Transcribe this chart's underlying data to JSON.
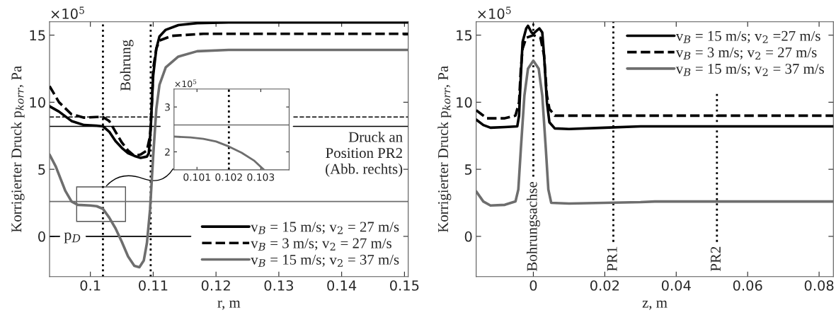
{
  "chart_data": [
    {
      "type": "line",
      "xlabel": "r, m",
      "ylabel": "Korrigierter Druck p$_{korr}$, Pa",
      "xlim": [
        0.0935,
        0.1506
      ],
      "ylim": [
        -3,
        16
      ],
      "xticks": [
        0.1,
        0.11,
        0.12,
        0.13,
        0.14,
        0.15
      ],
      "yticks": [
        0,
        5,
        10,
        15
      ],
      "legend": "bottom right",
      "series": [
        {
          "name": "v$_{B}$ = 15 m/s; v$_{2}$ = 27 m/s",
          "color": "#000000",
          "line_style": "solid",
          "x": [
            0.0935,
            0.095,
            0.097,
            0.099,
            0.101,
            0.102,
            0.103,
            0.104,
            0.105,
            0.106,
            0.107,
            0.108,
            0.109,
            0.1093,
            0.1096,
            0.11,
            0.1105,
            0.111,
            0.112,
            0.114,
            0.117,
            0.122,
            0.1506
          ],
          "values": [
            9.7,
            9.3,
            8.6,
            8.3,
            8.25,
            8.2,
            7.8,
            7.1,
            6.6,
            6.2,
            6.0,
            5.85,
            5.95,
            6.2,
            8,
            12,
            14,
            14.9,
            15.4,
            15.75,
            15.9,
            15.95,
            15.95
          ]
        },
        {
          "name": "v$_{B}$ = 3 m/s; v$_{2}$ = 27 m/s",
          "color": "#000000",
          "line_style": "dashed",
          "x": [
            0.0935,
            0.095,
            0.097,
            0.099,
            0.101,
            0.102,
            0.103,
            0.104,
            0.105,
            0.106,
            0.107,
            0.108,
            0.109,
            0.1095,
            0.1098,
            0.11,
            0.1105,
            0.111,
            0.113,
            0.118,
            0.1506
          ],
          "values": [
            11.2,
            10.0,
            9.1,
            8.85,
            8.9,
            8.9,
            8.6,
            7.8,
            7.0,
            6.4,
            6.0,
            6.1,
            6.4,
            7.5,
            10,
            12.5,
            14,
            14.6,
            14.95,
            15.1,
            15.1
          ]
        },
        {
          "name": "v$_{B}$ = 15 m/s; v$_{2}$ = 37 m/s",
          "color": "#6e6e6e",
          "line_style": "solid",
          "x": [
            0.0935,
            0.0945,
            0.096,
            0.097,
            0.098,
            0.1,
            0.101,
            0.102,
            0.103,
            0.104,
            0.105,
            0.106,
            0.107,
            0.1078,
            0.1085,
            0.109,
            0.1095,
            0.11,
            0.1105,
            0.111,
            0.112,
            0.114,
            0.117,
            0.122,
            0.1506
          ],
          "values": [
            6.1,
            5.2,
            3.4,
            2.6,
            2.35,
            2.3,
            2.25,
            2.05,
            1.4,
            0.6,
            -0.4,
            -1.5,
            -2.2,
            -2.3,
            -1.8,
            -0.5,
            2,
            6,
            9.5,
            11.3,
            12.6,
            13.4,
            13.8,
            13.9,
            13.9
          ]
        }
      ],
      "ref_lines": [
        {
          "axis": "y",
          "value": 8.2,
          "color": "#000000",
          "line_style": "solid"
        },
        {
          "axis": "y",
          "value": 8.9,
          "color": "#000000",
          "line_style": "dashed"
        },
        {
          "axis": "y",
          "value": 2.6,
          "color": "#6e6e6e",
          "line_style": "solid"
        },
        {
          "axis": "y",
          "value": 0,
          "label": "p$_{D}$",
          "color": "#000000",
          "line_style": "solid"
        },
        {
          "axis": "x",
          "value": 0.102,
          "color": "#000000",
          "line_style": "dotted"
        },
        {
          "axis": "x",
          "value": 0.1096,
          "color": "#000000",
          "line_style": "dotted"
        }
      ],
      "annotations": [
        "×10$^{5}$",
        "Bohrung",
        "Druck an\nPosition PR2\n(Abb. rechts)"
      ]
    },
    {
      "type": "line",
      "xlim": [
        0.10028,
        0.10389
      ],
      "ylim": [
        1.6,
        3.4
      ],
      "xticks": [
        0.101,
        0.102,
        0.103
      ],
      "yticks": [
        2,
        3
      ],
      "series": [
        {
          "color": "#6e6e6e",
          "line_style": "solid",
          "x": [
            0.10028,
            0.1008,
            0.1012,
            0.1016,
            0.102,
            0.1024,
            0.1028,
            0.1031
          ],
          "values": [
            2.34,
            2.32,
            2.29,
            2.23,
            2.12,
            1.98,
            1.8,
            1.6
          ]
        }
      ],
      "ref_lines": [
        {
          "axis": "y",
          "value": 2.6,
          "color": "#6e6e6e",
          "line_style": "solid"
        },
        {
          "axis": "x",
          "value": 0.102,
          "color": "#000000",
          "line_style": "dotted"
        }
      ],
      "annotations": [
        "×10$^{5}$"
      ]
    },
    {
      "type": "line",
      "xlabel": "z, m",
      "ylabel": "Korrigierter Druck p$_{korr}$, Pa",
      "xlim": [
        -0.016,
        0.084
      ],
      "ylim": [
        -3,
        16
      ],
      "xticks": [
        0,
        0.02,
        0.04,
        0.06,
        0.08
      ],
      "yticks": [
        0,
        5,
        10,
        15
      ],
      "legend": "top right",
      "series": [
        {
          "name": "v$_{B}$ = 15 m/s; v$_{2}$ =27 m/s",
          "color": "#000000",
          "line_style": "solid",
          "x": [
            -0.016,
            -0.014,
            -0.012,
            -0.008,
            -0.0045,
            -0.004,
            -0.0035,
            -0.003,
            -0.002,
            -0.0015,
            -0.0005,
            0,
            0.0008,
            0.0017,
            0.0025,
            0.003,
            0.0038,
            0.0045,
            0.006,
            0.01,
            0.02,
            0.03,
            0.05,
            0.084
          ],
          "values": [
            8.7,
            8.3,
            8.1,
            8.15,
            8.2,
            9,
            12,
            14.5,
            15.5,
            15.7,
            15.2,
            15.1,
            15.3,
            15.5,
            15.2,
            13.5,
            10,
            8.5,
            8.05,
            8.0,
            8.1,
            8.2,
            8.2,
            8.2
          ]
        },
        {
          "name": "v$_{B}$ = 3 m/s; v$_{2}$ = 27 m/s",
          "color": "#000000",
          "line_style": "dashed",
          "x": [
            -0.016,
            -0.013,
            -0.008,
            -0.005,
            -0.004,
            -0.0035,
            -0.003,
            -0.002,
            0,
            0.002,
            0.003,
            0.0038,
            0.0045,
            0.006,
            0.084
          ],
          "values": [
            9.4,
            8.8,
            8.8,
            9.0,
            10,
            12.5,
            14,
            14.8,
            15.0,
            14.8,
            13.5,
            10.5,
            9.5,
            9.0,
            9.0
          ]
        },
        {
          "name": "v$_{B}$ = 15 m/s; v$_{2}$ = 37 m/s",
          "color": "#6e6e6e",
          "line_style": "solid",
          "x": [
            -0.016,
            -0.014,
            -0.012,
            -0.008,
            -0.005,
            -0.0042,
            -0.0035,
            -0.0025,
            -0.0015,
            0,
            0.0015,
            0.0025,
            0.0035,
            0.0042,
            0.005,
            0.01,
            0.03,
            0.034,
            0.084
          ],
          "values": [
            3.35,
            2.6,
            2.3,
            2.35,
            2.6,
            3.5,
            6.5,
            10.5,
            12.5,
            13.1,
            12.5,
            10.5,
            6.5,
            3.5,
            2.5,
            2.45,
            2.55,
            2.6,
            2.6
          ]
        }
      ],
      "ref_lines": [
        {
          "axis": "x",
          "value": 0,
          "label": "Bohrungsachse",
          "color": "#000000",
          "line_style": "dotted"
        },
        {
          "axis": "x",
          "value": 0.0224,
          "label": "PR1",
          "color": "#000000",
          "line_style": "dotted"
        },
        {
          "axis": "x",
          "value": 0.0514,
          "label": "PR2",
          "color": "#000000",
          "line_style": "dotted"
        }
      ],
      "annotations": [
        "×10$^{5}$"
      ]
    }
  ]
}
